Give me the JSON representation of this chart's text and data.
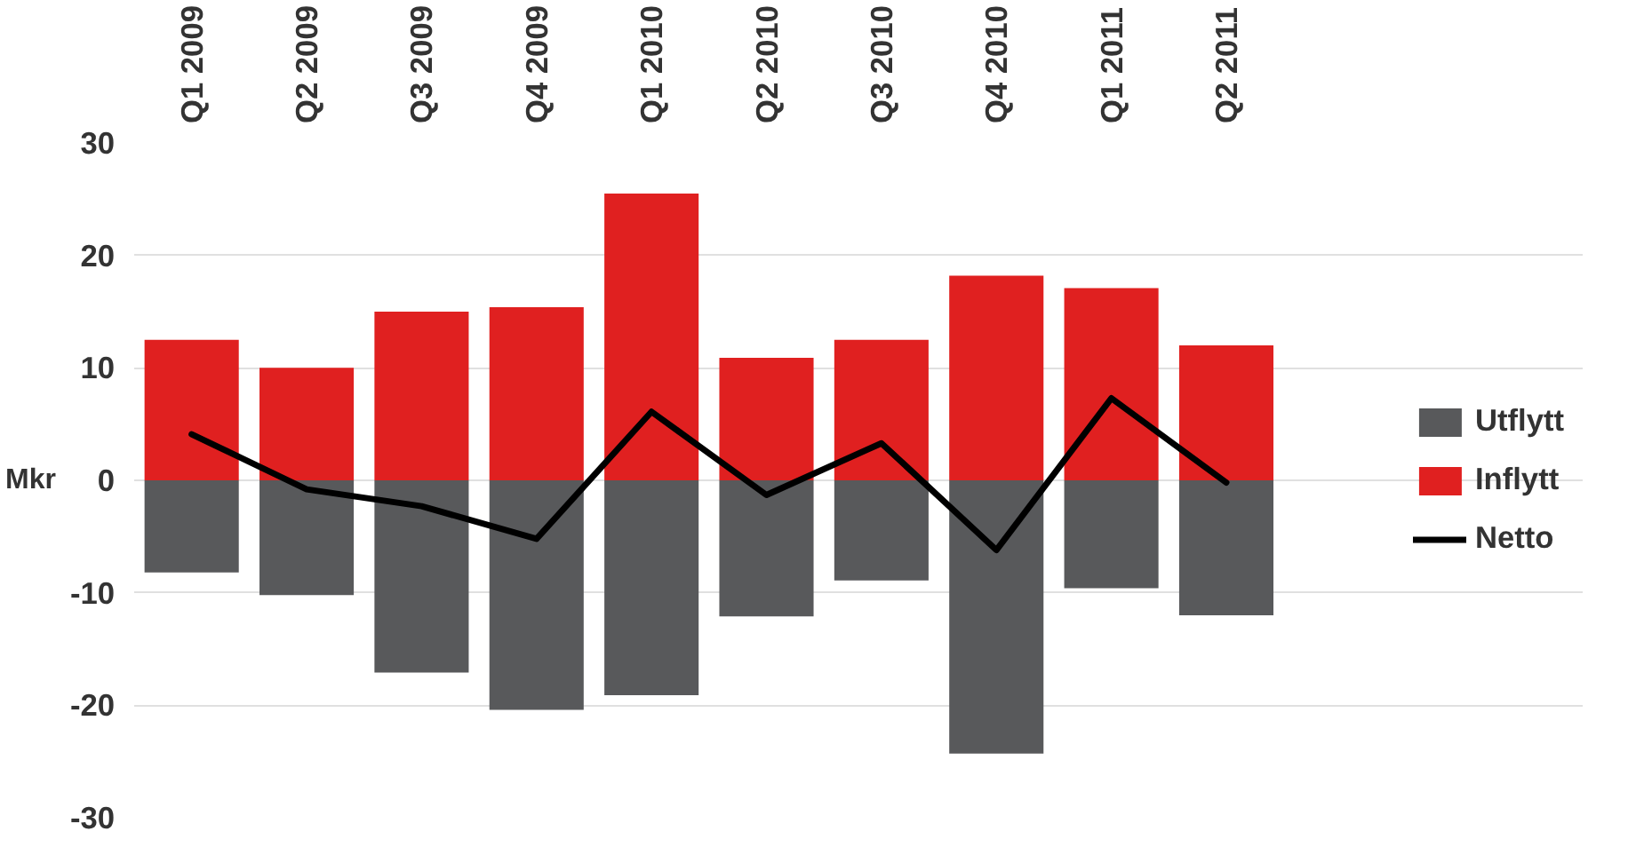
{
  "chart_data": {
    "type": "bar",
    "stacked": true,
    "ylabel": "Mkr",
    "categories": [
      "Q1 2009",
      "Q2 2009",
      "Q3 2009",
      "Q4 2009",
      "Q1 2010",
      "Q2 2010",
      "Q3 2010",
      "Q4 2010",
      "Q1 2011",
      "Q2 2011"
    ],
    "series": [
      {
        "name": "Utflytt",
        "color": "#58595b",
        "values": [
          -8.2,
          -10.2,
          -17.1,
          -20.4,
          -19.1,
          -12.1,
          -8.9,
          -24.3,
          -9.6,
          -12.0
        ]
      },
      {
        "name": "Inflytt",
        "color": "#e02020",
        "values": [
          12.5,
          10.0,
          15.0,
          15.4,
          25.5,
          10.9,
          12.5,
          18.2,
          17.1,
          12.0
        ]
      },
      {
        "name": "Netto",
        "type": "line",
        "color": "#000000",
        "values": [
          4.1,
          -0.8,
          -2.3,
          -5.2,
          6.1,
          -1.3,
          3.3,
          -6.2,
          7.3,
          -0.2
        ]
      }
    ],
    "ylim": [
      -30,
      30
    ],
    "yticks": [
      -30,
      -20,
      -10,
      0,
      10,
      20,
      30
    ],
    "grid": "y",
    "legend": "right",
    "marker": "none",
    "line_style": "solid"
  }
}
